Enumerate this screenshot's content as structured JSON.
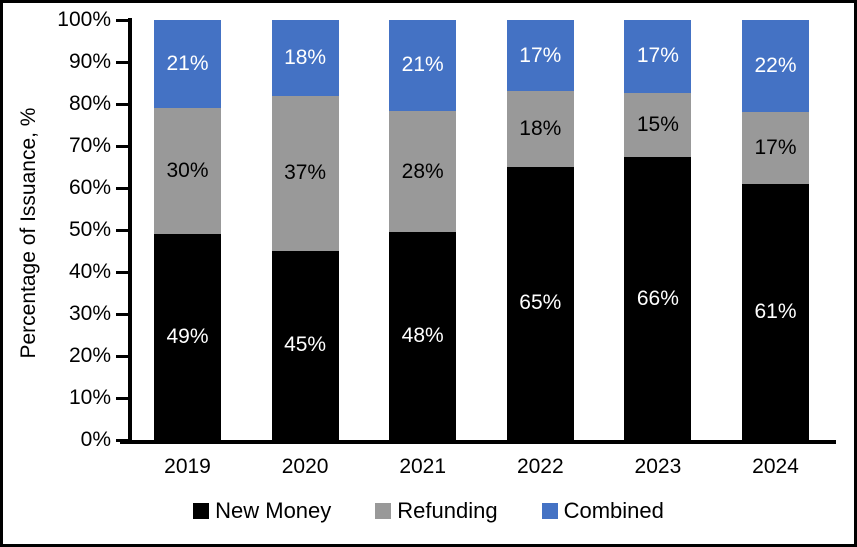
{
  "chart_data": {
    "type": "bar",
    "stacked": true,
    "percent_stacked": true,
    "title": "",
    "xlabel": "",
    "ylabel": "Percentage of Issuance, %",
    "categories": [
      "2019",
      "2020",
      "2021",
      "2022",
      "2023",
      "2024"
    ],
    "series": [
      {
        "name": "New Money",
        "color": "#000000",
        "label_color": "#FFFFFF",
        "values": [
          49,
          45,
          48,
          65,
          66,
          61
        ]
      },
      {
        "name": "Refunding",
        "color": "#999999",
        "label_color": "#000000",
        "values": [
          30,
          37,
          28,
          18,
          15,
          17
        ]
      },
      {
        "name": "Combined",
        "color": "#4472C4",
        "label_color": "#FFFFFF",
        "values": [
          21,
          18,
          21,
          17,
          17,
          22
        ]
      }
    ],
    "data_label_suffix": "%",
    "ylim": [
      0,
      100
    ],
    "ytick_step": 10,
    "ytick_labels": [
      "0%",
      "10%",
      "20%",
      "30%",
      "40%",
      "50%",
      "60%",
      "70%",
      "80%",
      "90%",
      "100%"
    ],
    "grid": false,
    "legend_position": "bottom",
    "legend": [
      "New Money",
      "Refunding",
      "Combined"
    ],
    "axis_color": "#000000",
    "background_color": "#FFFFFF",
    "frame_color": "#000000"
  }
}
